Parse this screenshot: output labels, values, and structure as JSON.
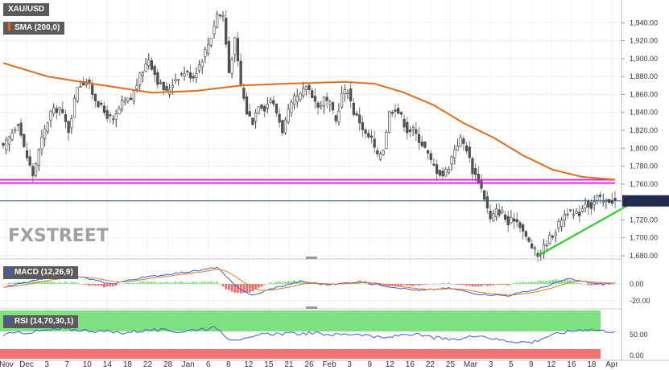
{
  "chart_data": {
    "type": "candlestick",
    "symbol": "XAU/USD",
    "indicator_label": "SMA (200,0)",
    "last_price": "1,741.28",
    "price_axis": {
      "min": 1680,
      "max": 1960,
      "ticks": [
        "1,940.00",
        "1,920.00",
        "1,900.00",
        "1,880.00",
        "1,860.00",
        "1,840.00",
        "1,820.00",
        "1,800.00",
        "1,780.00",
        "1,760.00",
        "1,720.00",
        "1,700.00",
        "1,680.00"
      ]
    },
    "date_labels": [
      "Nov",
      "Dec",
      "3",
      "7",
      "10",
      "14",
      "18",
      "22",
      "28",
      "Jan",
      "6",
      "8",
      "12",
      "15",
      "21",
      "26",
      "Feb",
      "3",
      "9",
      "12",
      "16",
      "22",
      "25",
      "Mar",
      "3",
      "5",
      "9",
      "12",
      "16",
      "18",
      "Apr"
    ],
    "close_keypoints": [
      [
        0,
        1800
      ],
      [
        5,
        1830
      ],
      [
        7,
        1800
      ],
      [
        10,
        1770
      ],
      [
        13,
        1810
      ],
      [
        16,
        1840
      ],
      [
        19,
        1845
      ],
      [
        22,
        1820
      ],
      [
        25,
        1870
      ],
      [
        28,
        1875
      ],
      [
        31,
        1855
      ],
      [
        34,
        1840
      ],
      [
        37,
        1830
      ],
      [
        40,
        1850
      ],
      [
        43,
        1855
      ],
      [
        46,
        1880
      ],
      [
        49,
        1900
      ],
      [
        52,
        1875
      ],
      [
        55,
        1862
      ],
      [
        58,
        1878
      ],
      [
        61,
        1885
      ],
      [
        64,
        1880
      ],
      [
        67,
        1900
      ],
      [
        70,
        1925
      ],
      [
        72,
        1950
      ],
      [
        74,
        1948
      ],
      [
        76,
        1885
      ],
      [
        78,
        1920
      ],
      [
        80,
        1870
      ],
      [
        82,
        1840
      ],
      [
        84,
        1830
      ],
      [
        86,
        1850
      ],
      [
        88,
        1845
      ],
      [
        90,
        1855
      ],
      [
        92,
        1840
      ],
      [
        94,
        1820
      ],
      [
        96,
        1840
      ],
      [
        98,
        1855
      ],
      [
        100,
        1858
      ],
      [
        102,
        1870
      ],
      [
        104,
        1860
      ],
      [
        106,
        1845
      ],
      [
        108,
        1855
      ],
      [
        110,
        1848
      ],
      [
        112,
        1830
      ],
      [
        114,
        1860
      ],
      [
        116,
        1865
      ],
      [
        118,
        1840
      ],
      [
        120,
        1830
      ],
      [
        122,
        1815
      ],
      [
        124,
        1810
      ],
      [
        126,
        1790
      ],
      [
        128,
        1800
      ],
      [
        130,
        1840
      ],
      [
        132,
        1845
      ],
      [
        134,
        1835
      ],
      [
        136,
        1820
      ],
      [
        138,
        1820
      ],
      [
        140,
        1810
      ],
      [
        142,
        1800
      ],
      [
        144,
        1785
      ],
      [
        146,
        1775
      ],
      [
        148,
        1770
      ],
      [
        150,
        1780
      ],
      [
        152,
        1800
      ],
      [
        154,
        1810
      ],
      [
        156,
        1800
      ],
      [
        158,
        1775
      ],
      [
        160,
        1765
      ],
      [
        162,
        1745
      ],
      [
        164,
        1720
      ],
      [
        166,
        1730
      ],
      [
        168,
        1728
      ],
      [
        170,
        1715
      ],
      [
        172,
        1722
      ],
      [
        174,
        1715
      ],
      [
        176,
        1700
      ],
      [
        178,
        1690
      ],
      [
        180,
        1680
      ],
      [
        182,
        1690
      ],
      [
        184,
        1700
      ],
      [
        186,
        1708
      ],
      [
        188,
        1722
      ],
      [
        190,
        1730
      ],
      [
        192,
        1725
      ],
      [
        194,
        1728
      ],
      [
        196,
        1740
      ],
      [
        198,
        1735
      ],
      [
        200,
        1745
      ],
      [
        202,
        1740
      ],
      [
        204,
        1742
      ],
      [
        206,
        1741
      ]
    ],
    "sma_200_keypoints": [
      [
        0,
        1895
      ],
      [
        15,
        1880
      ],
      [
        30,
        1872
      ],
      [
        50,
        1862
      ],
      [
        65,
        1864
      ],
      [
        80,
        1870
      ],
      [
        95,
        1872
      ],
      [
        115,
        1874
      ],
      [
        125,
        1872
      ],
      [
        135,
        1862
      ],
      [
        145,
        1848
      ],
      [
        155,
        1828
      ],
      [
        165,
        1812
      ],
      [
        175,
        1792
      ],
      [
        185,
        1776
      ],
      [
        195,
        1768
      ],
      [
        206,
        1765
      ]
    ],
    "support_level": 1763,
    "trendline": {
      "from": [
        180,
        1680
      ],
      "to": [
        215,
        1745
      ]
    },
    "macd": {
      "label": "MACD (12,26,9)",
      "ticks": [
        "0.00",
        "-20.00"
      ],
      "keypoints": [
        [
          0,
          -4
        ],
        [
          12,
          5
        ],
        [
          24,
          10
        ],
        [
          36,
          0
        ],
        [
          46,
          7
        ],
        [
          56,
          12
        ],
        [
          66,
          16
        ],
        [
          72,
          20
        ],
        [
          78,
          -2
        ],
        [
          84,
          -14
        ],
        [
          90,
          -6
        ],
        [
          100,
          3
        ],
        [
          110,
          -1
        ],
        [
          120,
          3
        ],
        [
          130,
          -3
        ],
        [
          140,
          -8
        ],
        [
          150,
          -5
        ],
        [
          160,
          -12
        ],
        [
          170,
          -14
        ],
        [
          180,
          -6
        ],
        [
          190,
          6
        ],
        [
          200,
          0
        ],
        [
          206,
          1
        ]
      ]
    },
    "rsi": {
      "label": "RSI (14,70,30,1)",
      "ticks": [
        "50.00",
        "0.00"
      ],
      "upper": 70,
      "lower": 30,
      "keypoints": [
        [
          0,
          50
        ],
        [
          10,
          56
        ],
        [
          20,
          62
        ],
        [
          30,
          58
        ],
        [
          40,
          54
        ],
        [
          50,
          60
        ],
        [
          60,
          56
        ],
        [
          66,
          62
        ],
        [
          72,
          64
        ],
        [
          76,
          42
        ],
        [
          82,
          40
        ],
        [
          88,
          52
        ],
        [
          96,
          52
        ],
        [
          104,
          53
        ],
        [
          112,
          50
        ],
        [
          120,
          52
        ],
        [
          128,
          42
        ],
        [
          136,
          52
        ],
        [
          144,
          45
        ],
        [
          152,
          38
        ],
        [
          160,
          50
        ],
        [
          166,
          40
        ],
        [
          172,
          36
        ],
        [
          178,
          34
        ],
        [
          184,
          48
        ],
        [
          190,
          56
        ],
        [
          196,
          62
        ],
        [
          202,
          58
        ],
        [
          206,
          57
        ]
      ]
    },
    "watermark": "FXSTREET"
  }
}
